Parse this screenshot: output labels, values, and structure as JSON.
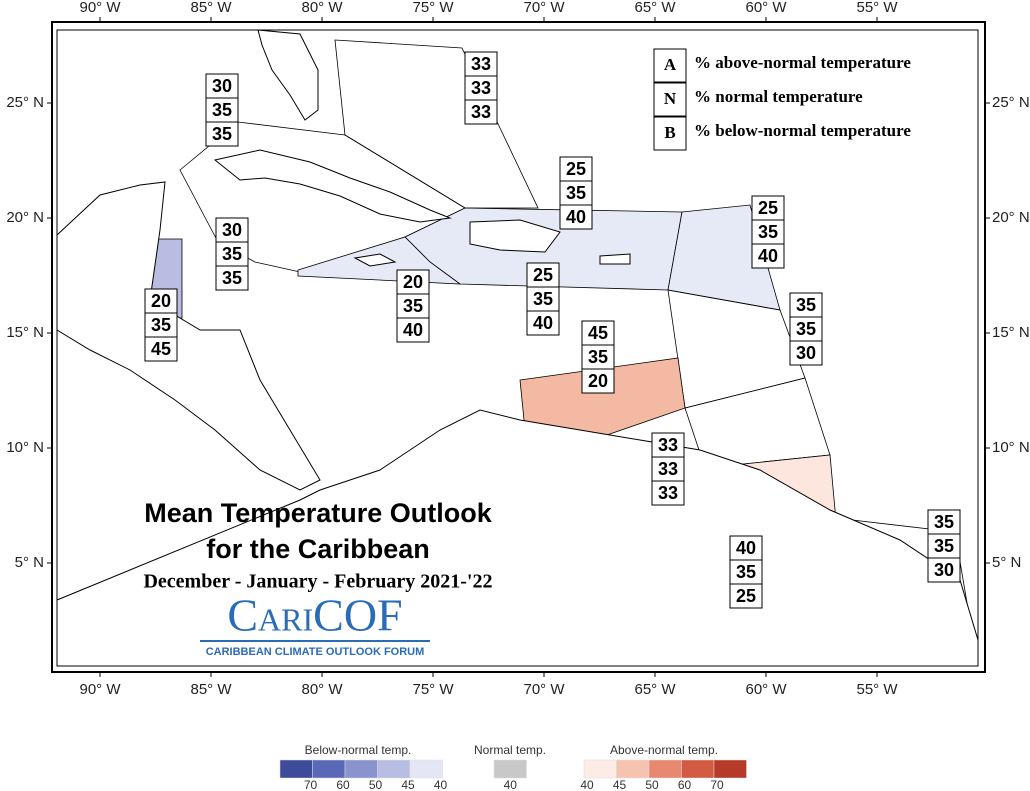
{
  "map": {
    "lon_ticks": [
      {
        "value": -90,
        "label": "90° W"
      },
      {
        "value": -85,
        "label": "85° W"
      },
      {
        "value": -80,
        "label": "80° W"
      },
      {
        "value": -75,
        "label": "75° W"
      },
      {
        "value": -70,
        "label": "70° W"
      },
      {
        "value": -65,
        "label": "65° W"
      },
      {
        "value": -60,
        "label": "60° W"
      },
      {
        "value": -55,
        "label": "55° W"
      }
    ],
    "lat_ticks": [
      {
        "value": 25,
        "label": "25° N"
      },
      {
        "value": 20,
        "label": "20° N"
      },
      {
        "value": 15,
        "label": "15° N"
      },
      {
        "value": 10,
        "label": "10° N"
      },
      {
        "value": 5,
        "label": "5° N"
      }
    ],
    "key": [
      {
        "letter": "A",
        "text": "% above-normal temperature"
      },
      {
        "letter": "N",
        "text": "% normal temperature"
      },
      {
        "letter": "B",
        "text": "% below-normal temperature"
      }
    ],
    "regions": [
      {
        "values": [
          30,
          35,
          35
        ]
      },
      {
        "values": [
          33,
          33,
          33
        ]
      },
      {
        "values": [
          25,
          35,
          40
        ],
        "color": "#e6e9f6"
      },
      {
        "values": [
          25,
          35,
          40
        ],
        "color": "#e6e9f6"
      },
      {
        "values": [
          30,
          35,
          35
        ]
      },
      {
        "values": [
          20,
          35,
          40
        ],
        "color": "#e6e9f6"
      },
      {
        "values": [
          25,
          35,
          40
        ],
        "color": "#e6e9f6"
      },
      {
        "values": [
          20,
          35,
          45
        ],
        "color": "#b9bde2"
      },
      {
        "values": [
          35,
          35,
          30
        ]
      },
      {
        "values": [
          45,
          35,
          20
        ],
        "color": "#f4b9a3"
      },
      {
        "values": [
          33,
          33,
          33
        ]
      },
      {
        "values": [
          40,
          35,
          25
        ],
        "color": "#fce6dd"
      },
      {
        "values": [
          35,
          35,
          30
        ]
      }
    ],
    "title": "Mean Temperature Outlook",
    "title2": "for the Caribbean",
    "subtitle": "December - January - February 2021-'22",
    "logo": "CariCOF",
    "tagline": "CARIBBEAN CLIMATE OUTLOOK FORUM",
    "legend": [
      {
        "title": "Below-normal temp.",
        "ticks": [
          70,
          60,
          50,
          45,
          40
        ],
        "colors": [
          "#3e4a9a",
          "#5b68b8",
          "#8b93cf",
          "#b8bde3",
          "#e3e6f5"
        ]
      },
      {
        "title": "Normal temp.",
        "ticks": [
          40
        ],
        "colors": [
          "#c8c8c8"
        ]
      },
      {
        "title": "Above-normal temp.",
        "ticks": [
          40,
          45,
          50,
          60,
          70
        ],
        "colors": [
          "#fdece6",
          "#f6c3b0",
          "#e8896f",
          "#d35a43",
          "#b53a27"
        ]
      }
    ]
  }
}
